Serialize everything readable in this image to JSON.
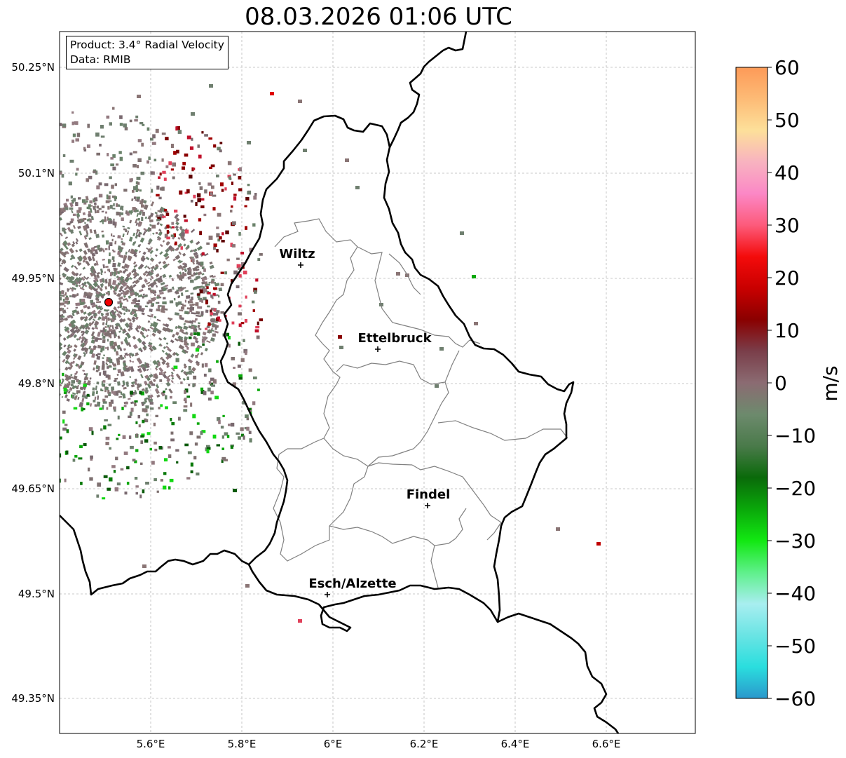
{
  "title": "08.03.2026 01:06 UTC",
  "info": {
    "product": "Product: 3.4° Radial Velocity",
    "data": "Data: RMIB"
  },
  "axes": {
    "lon_ticks": [
      "5.6°E",
      "5.8°E",
      "6°E",
      "6.2°E",
      "6.4°E",
      "6.6°E"
    ],
    "lat_ticks": [
      "50.25°N",
      "50.1°N",
      "49.95°N",
      "49.8°N",
      "49.65°N",
      "49.5°N",
      "49.35°N"
    ]
  },
  "cities": [
    {
      "name": "Wiltz"
    },
    {
      "name": "Ettelbruck"
    },
    {
      "name": "Findel"
    },
    {
      "name": "Esch/Alzette"
    }
  ],
  "radar": {
    "name": "radar-site"
  },
  "colorbar": {
    "label": "m/s",
    "ticks": [
      "60",
      "50",
      "40",
      "30",
      "20",
      "10",
      "0",
      "−10",
      "−20",
      "−30",
      "−40",
      "−50",
      "−60"
    ],
    "stops": [
      "#fd9a58",
      "#fdbb76",
      "#fde09a",
      "#f8b3c0",
      "#fb88c6",
      "#fd5b7b",
      "#f40b0b",
      "#c90000",
      "#8a0000",
      "#7a3e4a",
      "#8b6b72",
      "#6d8a6d",
      "#4a7a4a",
      "#0a6a0a",
      "#0aa80a",
      "#12e812",
      "#5ef08a",
      "#a8eef0",
      "#6ae4e4",
      "#2adede",
      "#2a98cc"
    ]
  }
}
